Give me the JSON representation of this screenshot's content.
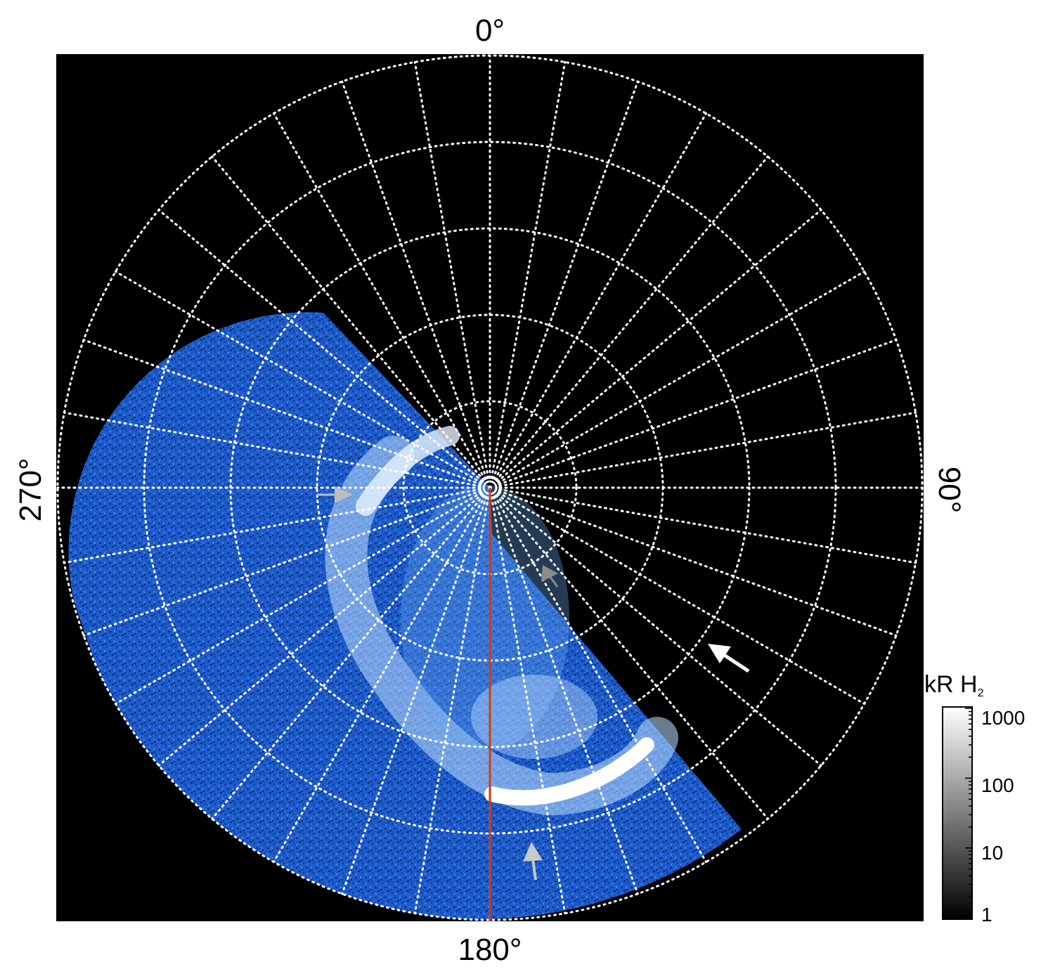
{
  "figure": {
    "labels": {
      "top": "0°",
      "bottom": "180°",
      "left": "270°",
      "right": "90°"
    },
    "colorbar": {
      "title_main": "kR H",
      "title_sub": "2",
      "ticks": [
        "1000",
        "100",
        "10",
        "1"
      ]
    },
    "colors": {
      "background": "#000000",
      "grid": "#ffffff",
      "emission_low": "#0a2f9a",
      "emission_mid": "#3b86e6",
      "emission_high": "#ffffff",
      "meridian_line": "#d23a10",
      "arrow_white": "#ffffff",
      "arrow_light_grey": "#bdbdbd",
      "arrow_dark_grey": "#8c8c8c"
    },
    "grid": {
      "latitude_circles": 5,
      "meridian_spacing_deg": 10
    },
    "arrows": [
      {
        "name": "white-arrow",
        "color": "arrow_white"
      },
      {
        "name": "grey-arrow-dusk",
        "color": "arrow_light_grey"
      },
      {
        "name": "grey-arrow-dawn",
        "color": "arrow_light_grey"
      },
      {
        "name": "grey-arrow-pole",
        "color": "arrow_dark_grey"
      }
    ]
  }
}
